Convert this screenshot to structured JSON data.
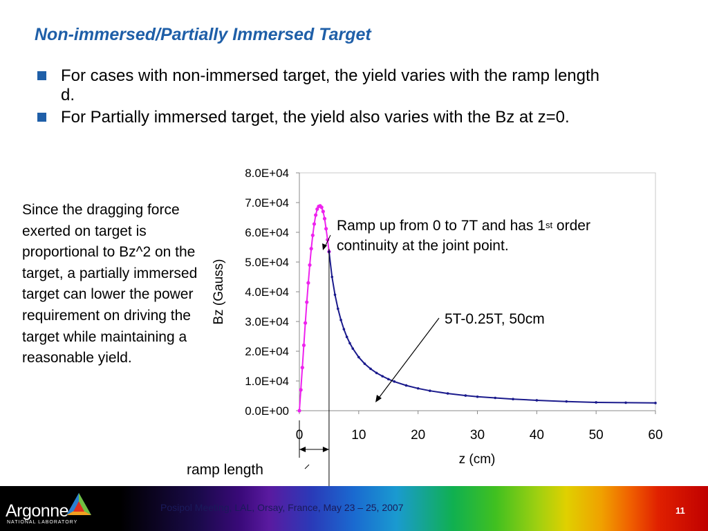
{
  "slide": {
    "title": "Non-immersed/Partially Immersed Target",
    "bullets": [
      "For cases with non-immersed target, the yield varies with the ramp length d.",
      "For Partially immersed target, the yield also varies with the Bz at z=0."
    ],
    "side_note": "Since the dragging force exerted on target is proportional to Bz^2 on the target, a partially immersed target can lower the power requirement on driving the target while maintaining a reasonable yield.",
    "annotation_ramp_line1": "Ramp up from 0 to 7T and has 1",
    "annotation_ramp_sup": "st",
    "annotation_ramp_after": " order",
    "annotation_ramp_line2": "continuity at the joint point.",
    "annotation_series": "5T-0.25T, 50cm",
    "annotation_ramp_length": "ramp length"
  },
  "footer": {
    "logo_text": "Argonne",
    "logo_sub": "NATIONAL LABORATORY",
    "meeting": "Posipol Meeting, LAL, Orsay, France, May 23 – 25, 2007",
    "page_number": "11"
  },
  "colors": {
    "title": "#1f5fa8",
    "ramp_series": "#ee22ee",
    "tail_series": "#1a1a8c"
  },
  "chart_data": {
    "type": "scatter",
    "xlabel": "z (cm)",
    "ylabel": "Bz (Gauss)",
    "xlim": [
      0,
      60
    ],
    "ylim": [
      0,
      80000
    ],
    "x_ticks": [
      0,
      10,
      20,
      30,
      40,
      50,
      60
    ],
    "x_tick_labels": [
      "0",
      "10",
      "20",
      "30",
      "40",
      "50",
      "60"
    ],
    "y_ticks": [
      0,
      10000,
      20000,
      30000,
      40000,
      50000,
      60000,
      70000,
      80000
    ],
    "y_tick_labels": [
      "0.0E+00",
      "1.0E+04",
      "2.0E+04",
      "3.0E+04",
      "4.0E+04",
      "5.0E+04",
      "6.0E+04",
      "7.0E+04",
      "8.0E+04"
    ],
    "grid": false,
    "legend": "none",
    "series": [
      {
        "x": [
          0.0,
          0.25,
          0.5,
          0.75,
          1.0,
          1.25,
          1.5,
          1.75,
          2.0,
          2.25,
          2.5,
          2.75,
          3.0,
          3.25,
          3.5,
          3.75,
          4.0,
          4.25,
          4.5,
          4.75,
          5.0
        ],
        "y": [
          0,
          7000,
          14500,
          22000,
          29500,
          36500,
          43000,
          49000,
          54500,
          59000,
          62800,
          65800,
          67800,
          68700,
          68900,
          68400,
          67000,
          64600,
          61200,
          57500,
          53500
        ]
      },
      {
        "x": [
          5.0,
          5.5,
          6.0,
          6.5,
          7.0,
          7.5,
          8.0,
          8.5,
          9.0,
          10.0,
          11.0,
          12.0,
          13.0,
          14.0,
          15.0,
          16.0,
          18.0,
          20.0,
          22.0,
          25.0,
          28.0,
          30.0,
          33.0,
          36.0,
          40.0,
          45.0,
          50.0,
          55.0,
          60.0
        ],
        "y": [
          53500,
          45000,
          39000,
          34300,
          30500,
          27400,
          24800,
          22700,
          20900,
          18000,
          15800,
          14100,
          12700,
          11600,
          10600,
          9800,
          8500,
          7500,
          6700,
          5800,
          5100,
          4700,
          4300,
          3900,
          3500,
          3100,
          2800,
          2700,
          2600
        ]
      }
    ]
  }
}
